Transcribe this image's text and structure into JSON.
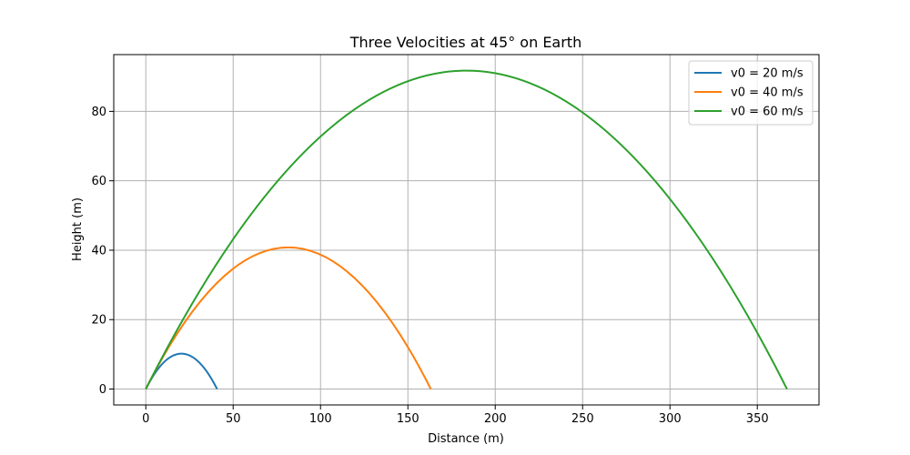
{
  "chart_data": {
    "type": "line",
    "title": "Three Velocities at 45° on Earth",
    "xlabel": "Distance (m)",
    "ylabel": "Height (m)",
    "xlim": [
      -18.35,
      385.3
    ],
    "ylim": [
      -4.59,
      96.36
    ],
    "xticks": [
      0,
      50,
      100,
      150,
      200,
      250,
      300,
      350
    ],
    "yticks": [
      0,
      20,
      40,
      60,
      80
    ],
    "grid": true,
    "legend_position": "top-right",
    "series": [
      {
        "name": "v0 = 20 m/s",
        "color": "#1f77b4",
        "x": [
          0,
          4.08,
          8.16,
          12.24,
          16.31,
          20.39,
          24.47,
          28.55,
          32.63,
          36.71,
          40.79
        ],
        "y": [
          0,
          3.67,
          6.53,
          8.56,
          9.79,
          10.2,
          9.79,
          8.56,
          6.53,
          3.67,
          0
        ]
      },
      {
        "name": "v0 = 40 m/s",
        "color": "#ff7f0e",
        "x": [
          0,
          16.31,
          32.63,
          48.94,
          65.25,
          81.57,
          97.88,
          114.19,
          130.5,
          146.82,
          163.13
        ],
        "y": [
          0,
          14.68,
          26.1,
          34.26,
          39.15,
          40.79,
          39.15,
          34.26,
          26.1,
          14.68,
          0
        ]
      },
      {
        "name": "v0 = 60 m/s",
        "color": "#2ca02c",
        "x": [
          0,
          36.7,
          73.39,
          110.09,
          146.79,
          183.49,
          220.18,
          256.88,
          293.58,
          330.28,
          366.97
        ],
        "y": [
          0,
          33.03,
          58.72,
          77.06,
          88.07,
          91.74,
          88.07,
          77.06,
          58.72,
          33.03,
          0
        ]
      }
    ]
  }
}
